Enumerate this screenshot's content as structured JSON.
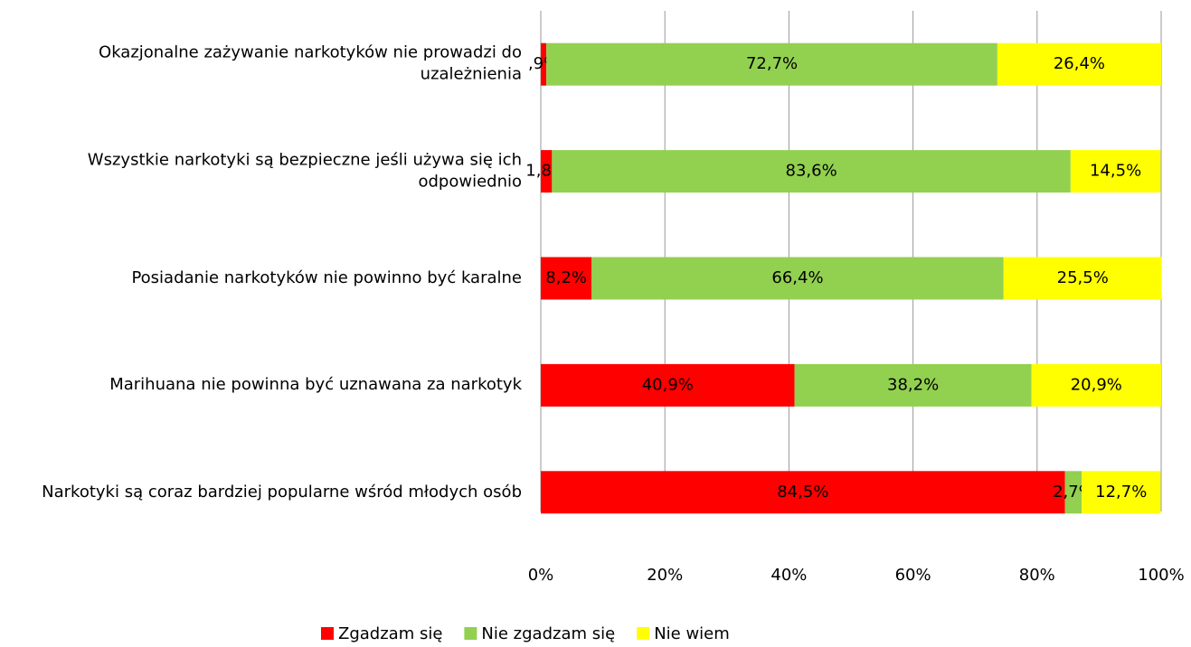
{
  "chart_data": {
    "type": "stacked_bar_horizontal",
    "categories": [
      "Okazjonalne zażywanie narkotyków nie prowadzi do uzależnienia",
      "Wszystkie narkotyki są bezpieczne jeśli używa się ich odpowiednio",
      "Posiadanie narkotyków nie powinno być karalne",
      "Marihuana nie powinna być uznawana za narkotyk",
      "Narkotyki są coraz bardziej popularne wśród młodych osób"
    ],
    "series": [
      {
        "name": "Zgadzam się",
        "color": "#ff0000",
        "values": [
          0.9,
          1.8,
          8.2,
          40.9,
          84.5
        ],
        "value_labels": [
          ",9%",
          "1,8%",
          "8,2%",
          "40,9%",
          "84,5%"
        ]
      },
      {
        "name": "Nie zgadzam się",
        "color": "#92d050",
        "values": [
          72.7,
          83.6,
          66.4,
          38.2,
          2.7
        ],
        "value_labels": [
          "72,7%",
          "83,6%",
          "66,4%",
          "38,2%",
          "2,7%"
        ]
      },
      {
        "name": "Nie wiem",
        "color": "#ffff00",
        "values": [
          26.4,
          14.5,
          25.5,
          20.9,
          12.7
        ],
        "value_labels": [
          "26,4%",
          "14,5%",
          "25,5%",
          "20,9%",
          "12,7%"
        ]
      }
    ],
    "xlim": [
      0,
      100
    ],
    "xticks": [
      {
        "value": 0,
        "label": "0%"
      },
      {
        "value": 20,
        "label": "20%"
      },
      {
        "value": 40,
        "label": "40%"
      },
      {
        "value": 60,
        "label": "60%"
      },
      {
        "value": 80,
        "label": "80%"
      },
      {
        "value": 100,
        "label": "100%"
      }
    ],
    "grid": true,
    "legend": "bottom"
  }
}
